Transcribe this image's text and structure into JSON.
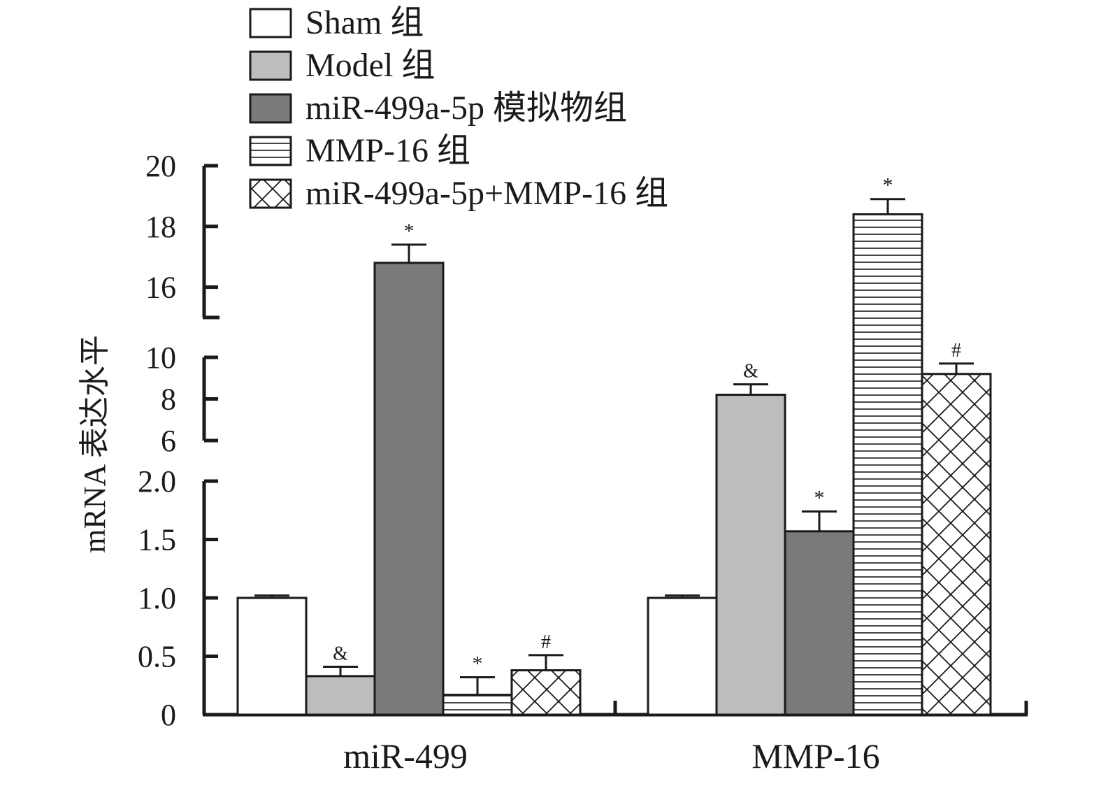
{
  "chart_data": {
    "type": "bar",
    "title": "",
    "xlabel": "",
    "ylabel": "mRNA 表达水平",
    "categories": [
      "miR-499",
      "MMP-16"
    ],
    "series": [
      {
        "name": "Sham 组",
        "pattern": "white",
        "values": [
          1.0,
          1.0
        ],
        "errors": [
          0.02,
          0.02
        ],
        "marks": [
          "",
          ""
        ]
      },
      {
        "name": "Model 组",
        "pattern": "lightgray",
        "values": [
          0.33,
          8.2
        ],
        "errors": [
          0.08,
          0.5
        ],
        "marks": [
          "&",
          "&"
        ]
      },
      {
        "name": "miR-499a-5p 模拟物组",
        "pattern": "darkgray",
        "values": [
          16.8,
          1.57
        ],
        "errors": [
          0.6,
          0.17
        ],
        "marks": [
          "*",
          "*"
        ]
      },
      {
        "name": "MMP-16 组",
        "pattern": "hlines",
        "values": [
          0.17,
          18.4
        ],
        "errors": [
          0.15,
          0.5
        ],
        "marks": [
          "*",
          "*"
        ]
      },
      {
        "name": "miR-499a-5p+MMP-16 组",
        "pattern": "crosshatch",
        "values": [
          0.38,
          9.2
        ],
        "errors": [
          0.13,
          0.5
        ],
        "marks": [
          "#",
          "#"
        ]
      }
    ],
    "y_axis_segments": [
      {
        "range": [
          0,
          2.0
        ],
        "ticks": [
          "0",
          "0.5",
          "1.0",
          "1.5",
          "2.0"
        ]
      },
      {
        "range": [
          6,
          10
        ],
        "ticks": [
          "6",
          "8",
          "10"
        ]
      },
      {
        "range": [
          15,
          20
        ],
        "ticks": [
          "16",
          "18",
          "20"
        ]
      }
    ],
    "legend_position": "top",
    "grid": false,
    "colors": {
      "white": "#ffffff",
      "lightgray": "#bdbdbd",
      "darkgray": "#7a7a7a",
      "stroke": "#1a1a1a"
    }
  }
}
